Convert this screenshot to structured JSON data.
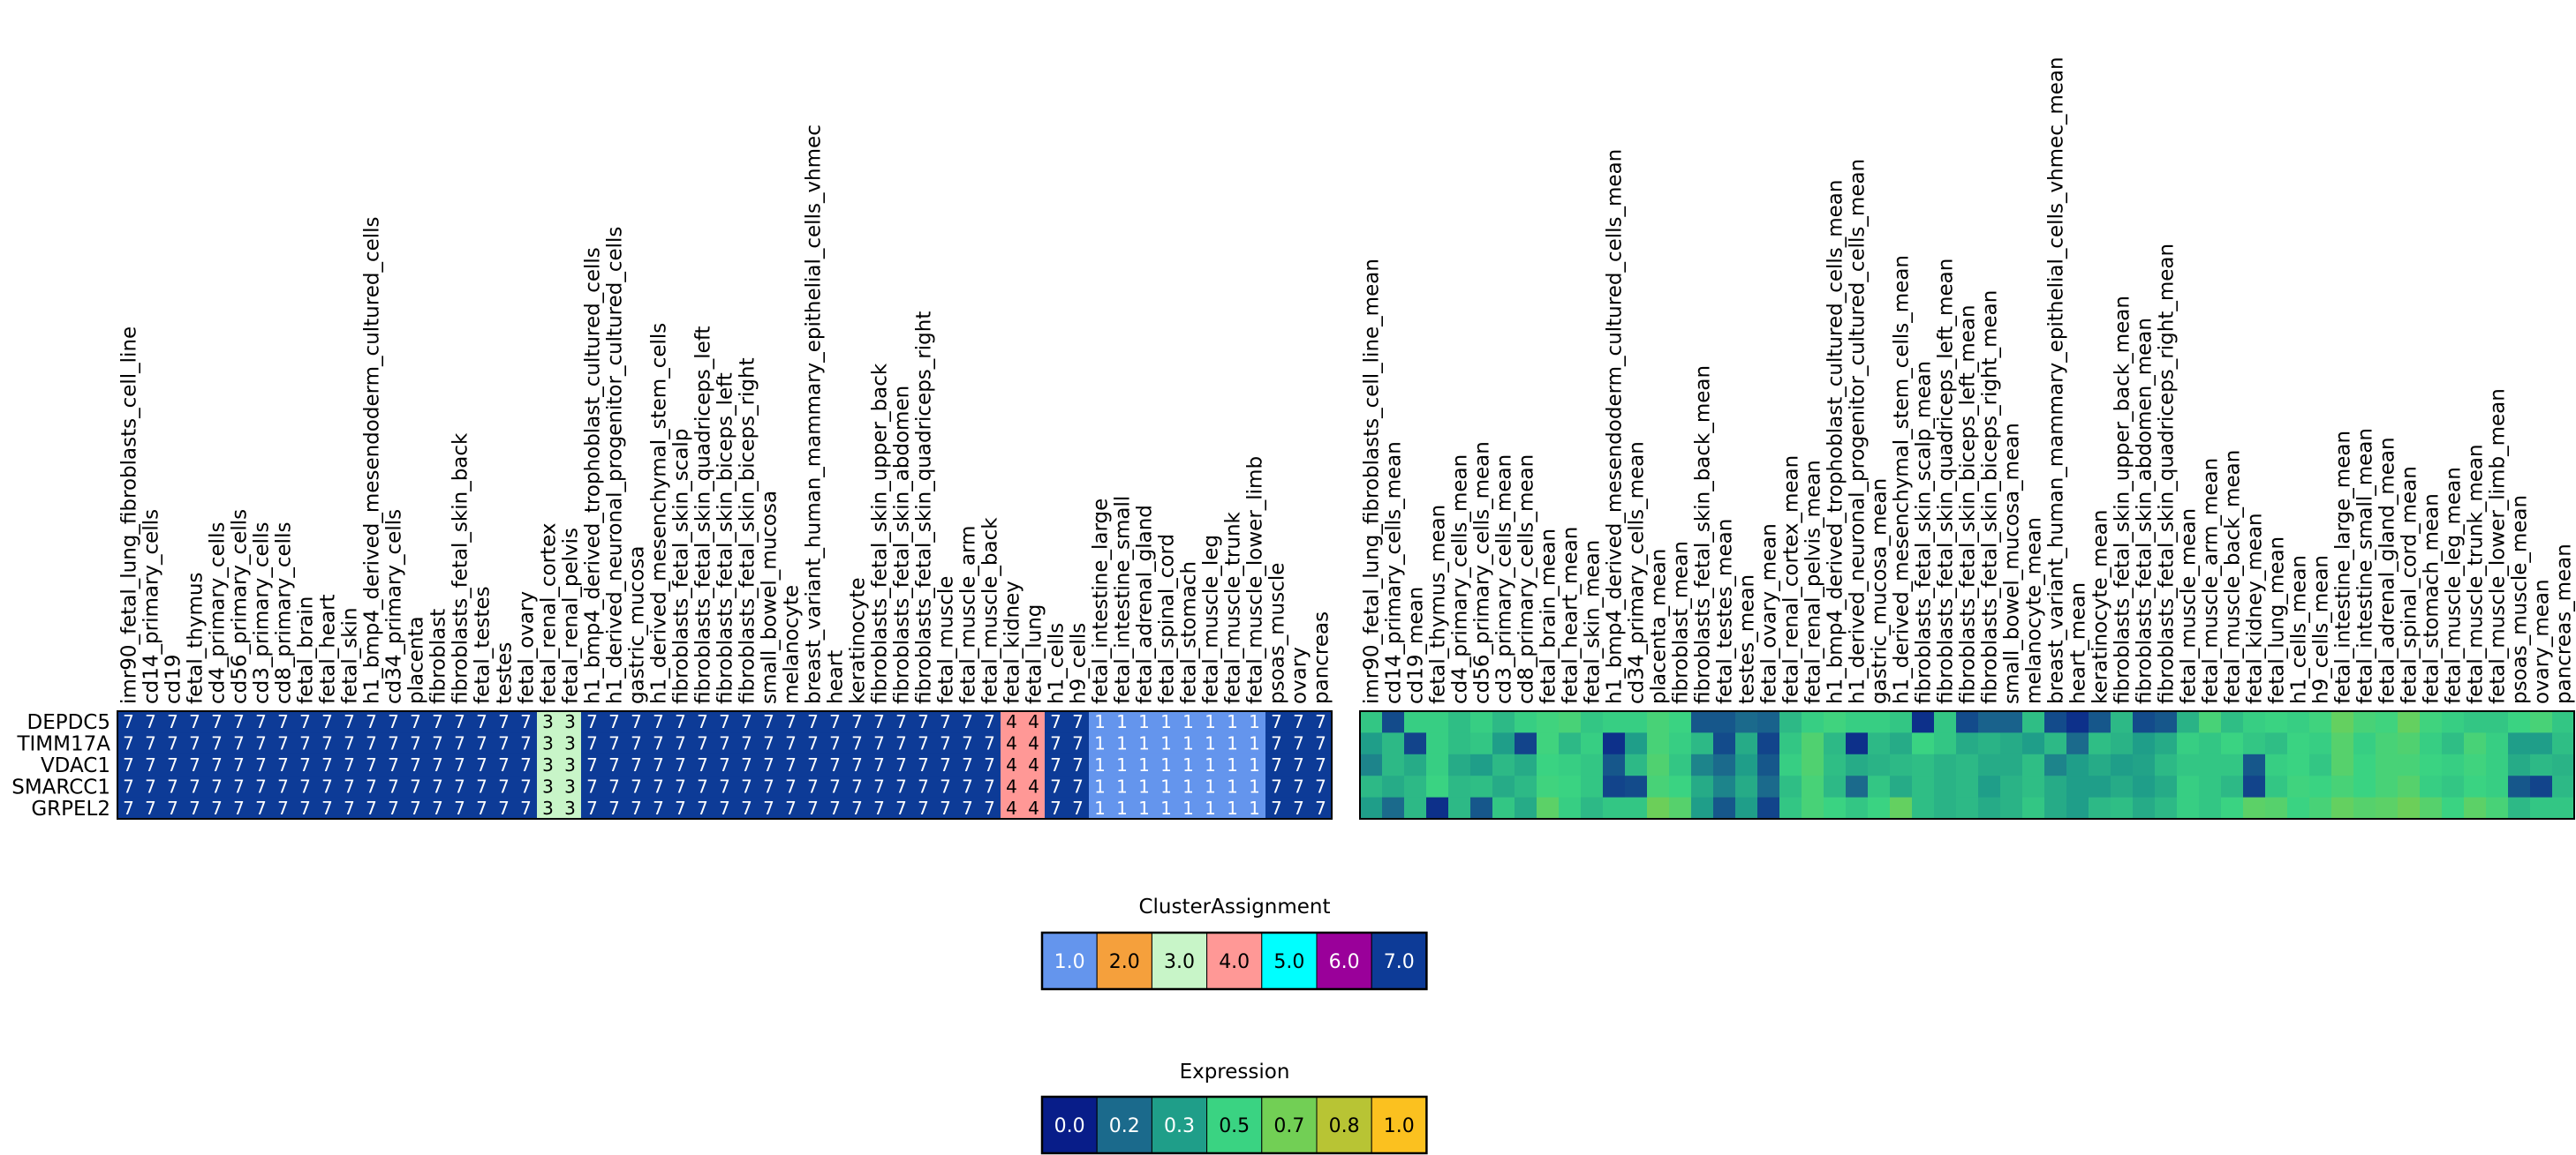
{
  "chart_data": [
    {
      "type": "heatmap",
      "name": "cluster_assignment_heatmap",
      "rows": [
        "DEPDC5",
        "TIMM17A",
        "VDAC1",
        "SMARCC1",
        "GRPEL2"
      ],
      "columns": [
        "imr90_fetal_lung_fibroblasts_cell_line",
        "cd14_primary_cells",
        "cd19",
        "fetal_thymus",
        "cd4_primary_cells",
        "cd56_primary_cells",
        "cd3_primary_cells",
        "cd8_primary_cells",
        "fetal_brain",
        "fetal_heart",
        "fetal_skin",
        "h1_bmp4_derived_mesendoderm_cultured_cells",
        "cd34_primary_cells",
        "placenta",
        "fibroblast",
        "fibroblasts_fetal_skin_back",
        "fetal_testes",
        "testes",
        "fetal_ovary",
        "fetal_renal_cortex",
        "fetal_renal_pelvis",
        "h1_bmp4_derived_trophoblast_cultured_cells",
        "h1_derived_neuronal_progenitor_cultured_cells",
        "gastric_mucosa",
        "h1_derived_mesenchymal_stem_cells",
        "fibroblasts_fetal_skin_scalp",
        "fibroblasts_fetal_skin_quadriceps_left",
        "fibroblasts_fetal_skin_biceps_left",
        "fibroblasts_fetal_skin_biceps_right",
        "small_bowel_mucosa",
        "melanocyte",
        "breast_variant_human_mammary_epithelial_cells_vhmec",
        "heart",
        "keratinocyte",
        "fibroblasts_fetal_skin_upper_back",
        "fibroblasts_fetal_skin_abdomen",
        "fibroblasts_fetal_skin_quadriceps_right",
        "fetal_muscle",
        "fetal_muscle_arm",
        "fetal_muscle_back",
        "fetal_kidney",
        "fetal_lung",
        "h1_cells",
        "h9_cells",
        "fetal_intestine_large",
        "fetal_intestine_small",
        "fetal_adrenal_gland",
        "fetal_spinal_cord",
        "fetal_stomach",
        "fetal_muscle_leg",
        "fetal_muscle_trunk",
        "fetal_muscle_lower_limb",
        "psoas_muscle",
        "ovary",
        "pancreas"
      ],
      "column_clusters": [
        7,
        7,
        7,
        7,
        7,
        7,
        7,
        7,
        7,
        7,
        7,
        7,
        7,
        7,
        7,
        7,
        7,
        7,
        7,
        3,
        3,
        7,
        7,
        7,
        7,
        7,
        7,
        7,
        7,
        7,
        7,
        7,
        7,
        7,
        7,
        7,
        7,
        7,
        7,
        7,
        4,
        4,
        7,
        7,
        1,
        1,
        1,
        1,
        1,
        1,
        1,
        1,
        7,
        7,
        7
      ],
      "cell_label_format": "integer"
    },
    {
      "type": "heatmap",
      "name": "expression_heatmap",
      "rows": [
        "DEPDC5",
        "TIMM17A",
        "VDAC1",
        "SMARCC1",
        "GRPEL2"
      ],
      "columns": [
        "imr90_fetal_lung_fibroblasts_cell_line_mean",
        "cd14_primary_cells_mean",
        "cd19_mean",
        "fetal_thymus_mean",
        "cd4_primary_cells_mean",
        "cd56_primary_cells_mean",
        "cd3_primary_cells_mean",
        "cd8_primary_cells_mean",
        "fetal_brain_mean",
        "fetal_heart_mean",
        "fetal_skin_mean",
        "h1_bmp4_derived_mesendoderm_cultured_cells_mean",
        "cd34_primary_cells_mean",
        "placenta_mean",
        "fibroblast_mean",
        "fibroblasts_fetal_skin_back_mean",
        "fetal_testes_mean",
        "testes_mean",
        "fetal_ovary_mean",
        "fetal_renal_cortex_mean",
        "fetal_renal_pelvis_mean",
        "h1_bmp4_derived_trophoblast_cultured_cells_mean",
        "h1_derived_neuronal_progenitor_cultured_cells_mean",
        "gastric_mucosa_mean",
        "h1_derived_mesenchymal_stem_cells_mean",
        "fibroblasts_fetal_skin_scalp_mean",
        "fibroblasts_fetal_skin_quadriceps_left_mean",
        "fibroblasts_fetal_skin_biceps_left_mean",
        "fibroblasts_fetal_skin_biceps_right_mean",
        "small_bowel_mucosa_mean",
        "melanocyte_mean",
        "breast_variant_human_mammary_epithelial_cells_vhmec_mean",
        "heart_mean",
        "keratinocyte_mean",
        "fibroblasts_fetal_skin_upper_back_mean",
        "fibroblasts_fetal_skin_abdomen_mean",
        "fibroblasts_fetal_skin_quadriceps_right_mean",
        "fetal_muscle_mean",
        "fetal_muscle_arm_mean",
        "fetal_muscle_back_mean",
        "fetal_kidney_mean",
        "fetal_lung_mean",
        "h1_cells_mean",
        "h9_cells_mean",
        "fetal_intestine_large_mean",
        "fetal_intestine_small_mean",
        "fetal_adrenal_gland_mean",
        "fetal_spinal_cord_mean",
        "fetal_stomach_mean",
        "fetal_muscle_leg_mean",
        "fetal_muscle_trunk_mean",
        "fetal_muscle_lower_limb_mean",
        "psoas_muscle_mean",
        "ovary_mean",
        "pancreas_mean"
      ],
      "values": [
        [
          0.45,
          0.12,
          0.48,
          0.48,
          0.42,
          0.48,
          0.4,
          0.48,
          0.52,
          0.55,
          0.45,
          0.48,
          0.48,
          0.55,
          0.5,
          0.15,
          0.15,
          0.2,
          0.18,
          0.4,
          0.48,
          0.52,
          0.48,
          0.48,
          0.45,
          0.05,
          0.45,
          0.12,
          0.18,
          0.18,
          0.42,
          0.12,
          0.05,
          0.15,
          0.4,
          0.12,
          0.15,
          0.38,
          0.55,
          0.42,
          0.48,
          0.5,
          0.48,
          0.52,
          0.65,
          0.55,
          0.52,
          0.65,
          0.52,
          0.48,
          0.45,
          0.45,
          0.5,
          0.55,
          0.45
        ],
        [
          0.3,
          0.4,
          0.1,
          0.48,
          0.42,
          0.45,
          0.3,
          0.1,
          0.52,
          0.4,
          0.48,
          0.05,
          0.3,
          0.55,
          0.48,
          0.4,
          0.12,
          0.35,
          0.1,
          0.45,
          0.58,
          0.4,
          0.05,
          0.4,
          0.35,
          0.5,
          0.45,
          0.35,
          0.38,
          0.35,
          0.3,
          0.4,
          0.2,
          0.42,
          0.38,
          0.3,
          0.35,
          0.48,
          0.45,
          0.5,
          0.45,
          0.42,
          0.5,
          0.48,
          0.6,
          0.48,
          0.55,
          0.58,
          0.48,
          0.42,
          0.55,
          0.48,
          0.3,
          0.3,
          0.42
        ],
        [
          0.25,
          0.4,
          0.35,
          0.48,
          0.35,
          0.3,
          0.4,
          0.35,
          0.5,
          0.48,
          0.45,
          0.15,
          0.4,
          0.58,
          0.45,
          0.25,
          0.2,
          0.3,
          0.15,
          0.48,
          0.58,
          0.42,
          0.35,
          0.38,
          0.4,
          0.42,
          0.38,
          0.4,
          0.35,
          0.35,
          0.42,
          0.25,
          0.3,
          0.35,
          0.3,
          0.32,
          0.4,
          0.45,
          0.45,
          0.45,
          0.15,
          0.48,
          0.5,
          0.45,
          0.6,
          0.5,
          0.55,
          0.55,
          0.5,
          0.48,
          0.52,
          0.48,
          0.35,
          0.4,
          0.38
        ],
        [
          0.4,
          0.35,
          0.4,
          0.5,
          0.4,
          0.42,
          0.35,
          0.4,
          0.52,
          0.5,
          0.45,
          0.1,
          0.12,
          0.55,
          0.5,
          0.35,
          0.25,
          0.35,
          0.2,
          0.42,
          0.55,
          0.4,
          0.2,
          0.45,
          0.35,
          0.42,
          0.38,
          0.4,
          0.3,
          0.38,
          0.42,
          0.35,
          0.3,
          0.3,
          0.35,
          0.3,
          0.35,
          0.48,
          0.45,
          0.4,
          0.1,
          0.45,
          0.52,
          0.5,
          0.55,
          0.5,
          0.55,
          0.6,
          0.48,
          0.45,
          0.5,
          0.48,
          0.15,
          0.1,
          0.4
        ],
        [
          0.3,
          0.2,
          0.4,
          0.05,
          0.4,
          0.15,
          0.45,
          0.35,
          0.62,
          0.48,
          0.4,
          0.45,
          0.45,
          0.68,
          0.6,
          0.3,
          0.15,
          0.3,
          0.1,
          0.45,
          0.55,
          0.5,
          0.45,
          0.5,
          0.65,
          0.42,
          0.38,
          0.4,
          0.35,
          0.38,
          0.45,
          0.35,
          0.3,
          0.4,
          0.42,
          0.35,
          0.4,
          0.48,
          0.45,
          0.5,
          0.62,
          0.6,
          0.5,
          0.55,
          0.65,
          0.6,
          0.62,
          0.68,
          0.6,
          0.5,
          0.62,
          0.55,
          0.4,
          0.45,
          0.45
        ]
      ]
    }
  ],
  "legends": {
    "cluster": {
      "title": "ClusterAssignment",
      "labels": [
        "1.0",
        "2.0",
        "3.0",
        "4.0",
        "5.0",
        "6.0",
        "7.0"
      ],
      "colors": [
        "#6495ed",
        "#f5a03c",
        "#c8f5c8",
        "#ff9896",
        "#00ffff",
        "#9a009a",
        "#0d3b97"
      ]
    },
    "expression": {
      "title": "Expression",
      "labels": [
        "0.0",
        "0.2",
        "0.3",
        "0.5",
        "0.7",
        "0.8",
        "1.0"
      ],
      "colors": [
        "#081d89",
        "#1b6a8c",
        "#1f9e89",
        "#3ad382",
        "#72cf55",
        "#b8c434",
        "#fbc11f"
      ]
    }
  },
  "colors": {
    "cluster_text_light": "#ffffff",
    "cluster_text_dark": "#000000",
    "border": "#000000"
  }
}
